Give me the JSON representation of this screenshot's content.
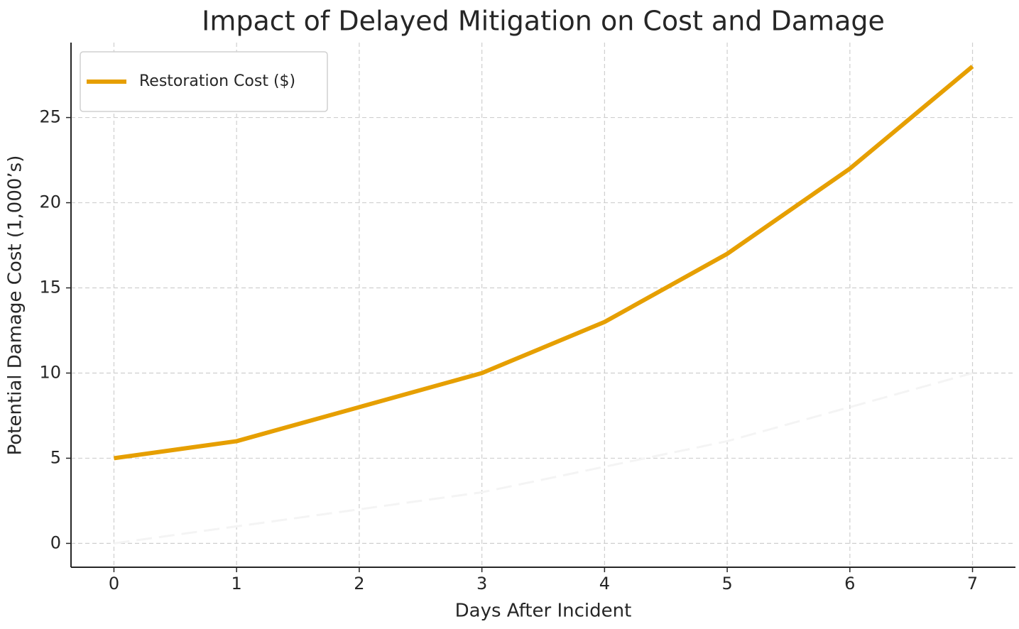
{
  "chart_data": {
    "type": "line",
    "title": "Impact of Delayed Mitigation on Cost and Damage",
    "x_label": "Days After Incident",
    "y_label": "Potential Damage Cost (1,000’s)",
    "x": [
      0,
      1,
      2,
      3,
      4,
      5,
      6,
      7
    ],
    "series": [
      {
        "name": "Restoration Cost ($)",
        "color": "#e69f00",
        "values": [
          5,
          6,
          8,
          10,
          13,
          17,
          22,
          28
        ]
      },
      {
        "color": "#f4f4f4",
        "dashed": true,
        "values": [
          0,
          1,
          2,
          3,
          4.5,
          6,
          8,
          10
        ]
      }
    ],
    "xlim": [
      -0.35,
      7.35
    ],
    "xticks": [
      0,
      1,
      2,
      3,
      4,
      5,
      6,
      7
    ],
    "ylim": [
      -1.4,
      29.4
    ],
    "yticks": [
      0,
      5,
      10,
      15,
      20,
      25
    ],
    "grid": true,
    "legend": "upper left"
  }
}
